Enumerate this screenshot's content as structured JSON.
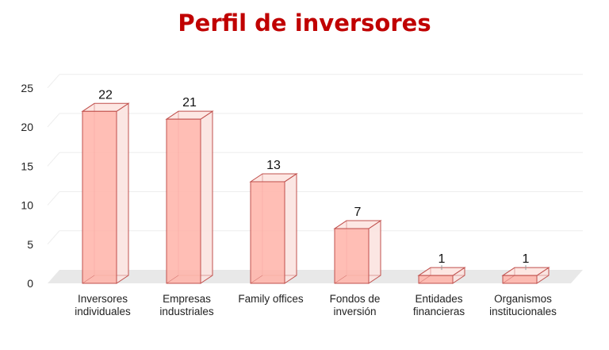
{
  "chart_data": {
    "type": "bar",
    "title": "Perfil de inversores",
    "categories": [
      [
        "Inversores",
        "individuales"
      ],
      [
        "Empresas",
        "industriales"
      ],
      [
        "Family offices"
      ],
      [
        "Fondos de",
        "inversión"
      ],
      [
        "Entidades",
        "financieras"
      ],
      [
        "Organismos",
        "institucionales"
      ]
    ],
    "values": [
      22,
      21,
      13,
      7,
      1,
      1
    ],
    "yticks": [
      "0",
      "5",
      "10",
      "15",
      "20",
      "25"
    ],
    "ylim": [
      0,
      25
    ],
    "grid": true,
    "colors": {
      "fill": "#ffb3a8",
      "edge": "#c0504d",
      "side": "#fbe3e0",
      "floor": "#e8e8e8",
      "title": "#c00000"
    }
  }
}
